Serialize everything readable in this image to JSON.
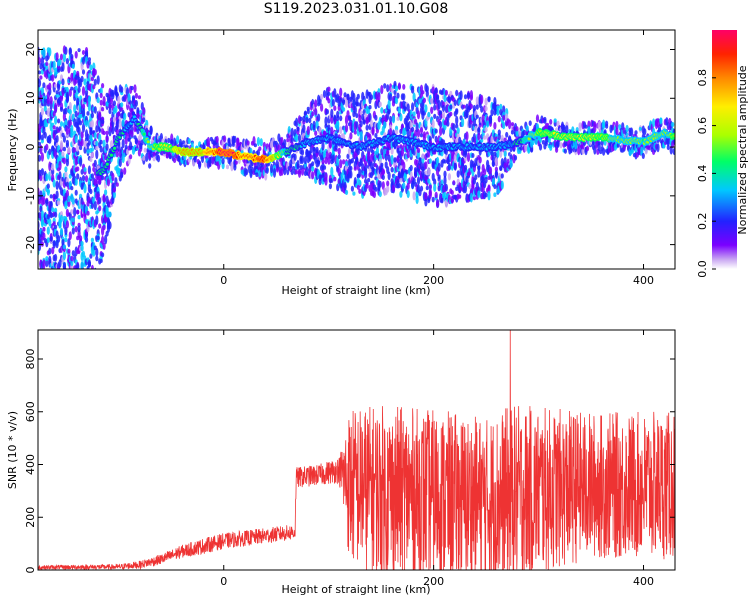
{
  "figure_title": "S119.2023.031.01.10.G08",
  "colors": {
    "snr_line": "#ee3333",
    "frame": "#000000",
    "colormap": [
      "#ffffff",
      "#c9a7f2",
      "#7a00ff",
      "#2222ff",
      "#00c8ff",
      "#00ff66",
      "#aaff00",
      "#ffee00",
      "#ff8800",
      "#ff2200",
      "#ff0066"
    ]
  },
  "chart_data": [
    {
      "type": "heatmap",
      "xlabel": "Height of straight line (km)",
      "ylabel": "Frequency (Hz)",
      "xlim": [
        -177,
        430
      ],
      "ylim": [
        -25,
        24
      ],
      "xticks": [
        0,
        200,
        400
      ],
      "yticks": [
        -20,
        -10,
        0,
        10,
        20
      ],
      "colorbar": {
        "label": "Normalized spectral amplitude",
        "range": [
          0,
          1
        ],
        "ticks": [
          "0.0",
          "0.2",
          "0.4",
          "0.6",
          "0.8"
        ]
      },
      "ridge": {
        "x": [
          -115,
          -100,
          -85,
          -70,
          -55,
          -40,
          -20,
          0,
          20,
          40,
          60,
          80,
          100,
          130,
          160,
          200,
          230,
          260,
          280,
          300,
          330,
          360,
          400,
          420,
          430
        ],
        "freq": [
          -5,
          2,
          6,
          0,
          0,
          -1,
          -1,
          -1,
          -2,
          -2.5,
          -1,
          1,
          2,
          0,
          2,
          0,
          0,
          0,
          1,
          3,
          2,
          2,
          1,
          3,
          2
        ],
        "amplitude": [
          0.4,
          0.35,
          0.3,
          0.5,
          0.6,
          0.7,
          0.75,
          0.95,
          0.85,
          0.9,
          0.4,
          0.3,
          0.25,
          0.25,
          0.25,
          0.25,
          0.25,
          0.25,
          0.35,
          0.55,
          0.6,
          0.55,
          0.45,
          0.5,
          0.55
        ]
      },
      "spread": {
        "x": [
          -177,
          -130,
          -100,
          -60,
          60,
          100,
          200,
          260,
          280,
          430
        ],
        "half_width_hz": [
          25,
          25,
          10,
          2,
          4,
          10,
          12,
          10,
          3,
          3
        ]
      }
    },
    {
      "type": "line",
      "xlabel": "Height of straight line (km)",
      "ylabel": "SNR (10 * v/v)",
      "xlim": [
        -177,
        430
      ],
      "ylim": [
        0,
        910
      ],
      "xticks": [
        0,
        200,
        400
      ],
      "yticks": [
        0,
        200,
        400,
        600,
        800
      ],
      "series": [
        {
          "envelope_x": [
            -177,
            -100,
            -80,
            -60,
            -40,
            -20,
            0,
            20,
            40,
            60,
            68,
            69,
            90,
            110,
            120,
            150,
            200,
            250,
            275,
            300,
            350,
            400,
            430
          ],
          "baseline": [
            10,
            12,
            20,
            40,
            70,
            90,
            110,
            120,
            130,
            140,
            145,
            350,
            360,
            380,
            320,
            300,
            280,
            260,
            280,
            300,
            320,
            320,
            320
          ],
          "noise_amplitude": [
            8,
            10,
            15,
            20,
            25,
            30,
            30,
            30,
            30,
            30,
            30,
            40,
            40,
            50,
            300,
            330,
            330,
            320,
            350,
            320,
            280,
            280,
            280
          ],
          "peak": {
            "x": 273,
            "y": 910
          }
        }
      ]
    }
  ]
}
